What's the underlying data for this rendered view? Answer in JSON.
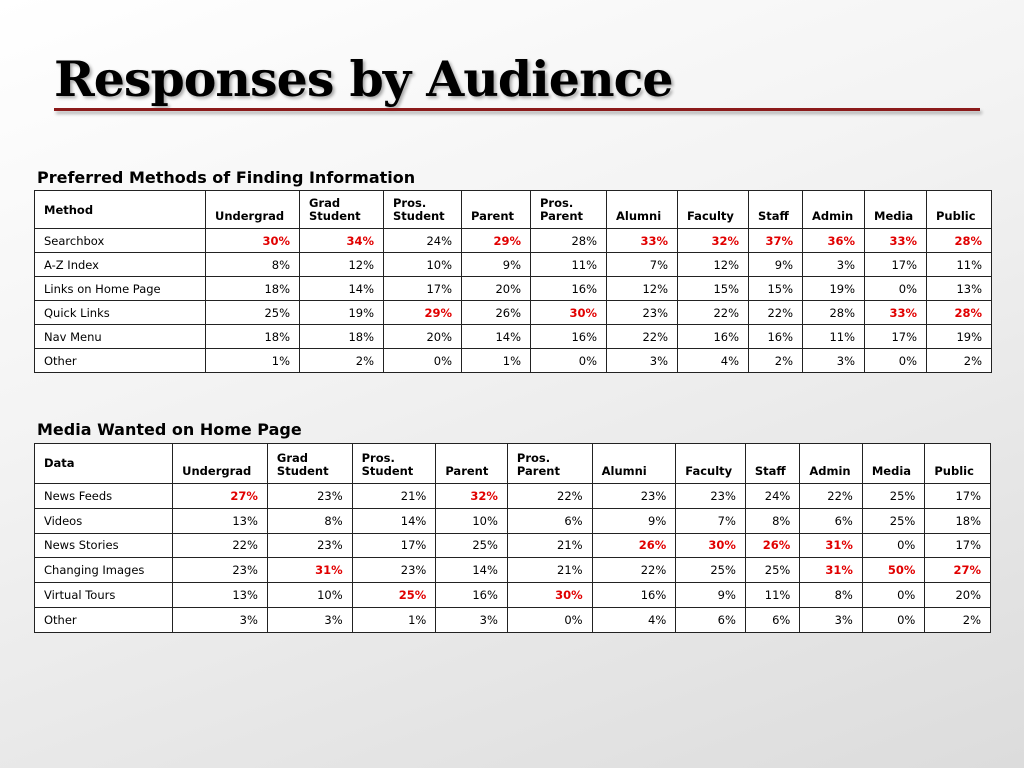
{
  "slide": {
    "title": "Responses by Audience"
  },
  "colors": {
    "highlight": "#e10000",
    "rule": "#8b1a1a"
  },
  "table1": {
    "title": "Preferred Methods of Finding Information",
    "first_header": "Method",
    "columns": [
      "Undergrad",
      "Grad\nStudent",
      "Pros.\nStudent",
      "Parent",
      "Pros.\nParent",
      "Alumni",
      "Faculty",
      "Staff",
      "Admin",
      "Media",
      "Public"
    ],
    "rows": [
      {
        "label": "Searchbox",
        "values": [
          "30%",
          "34%",
          "24%",
          "29%",
          "28%",
          "33%",
          "32%",
          "37%",
          "36%",
          "33%",
          "28%"
        ],
        "highlight": [
          true,
          true,
          false,
          true,
          false,
          true,
          true,
          true,
          true,
          true,
          true
        ]
      },
      {
        "label": "A-Z Index",
        "values": [
          "8%",
          "12%",
          "10%",
          "9%",
          "11%",
          "7%",
          "12%",
          "9%",
          "3%",
          "17%",
          "11%"
        ],
        "highlight": [
          false,
          false,
          false,
          false,
          false,
          false,
          false,
          false,
          false,
          false,
          false
        ]
      },
      {
        "label": "Links on Home Page",
        "values": [
          "18%",
          "14%",
          "17%",
          "20%",
          "16%",
          "12%",
          "15%",
          "15%",
          "19%",
          "0%",
          "13%"
        ],
        "highlight": [
          false,
          false,
          false,
          false,
          false,
          false,
          false,
          false,
          false,
          false,
          false
        ]
      },
      {
        "label": "Quick Links",
        "values": [
          "25%",
          "19%",
          "29%",
          "26%",
          "30%",
          "23%",
          "22%",
          "22%",
          "28%",
          "33%",
          "28%"
        ],
        "highlight": [
          false,
          false,
          true,
          false,
          true,
          false,
          false,
          false,
          false,
          true,
          true
        ]
      },
      {
        "label": "Nav Menu",
        "values": [
          "18%",
          "18%",
          "20%",
          "14%",
          "16%",
          "22%",
          "16%",
          "16%",
          "11%",
          "17%",
          "19%"
        ],
        "highlight": [
          false,
          false,
          false,
          false,
          false,
          false,
          false,
          false,
          false,
          false,
          false
        ]
      },
      {
        "label": "Other",
        "values": [
          "1%",
          "2%",
          "0%",
          "1%",
          "0%",
          "3%",
          "4%",
          "2%",
          "3%",
          "0%",
          "2%"
        ],
        "highlight": [
          false,
          false,
          false,
          false,
          false,
          false,
          false,
          false,
          false,
          false,
          false
        ]
      }
    ]
  },
  "table2": {
    "title": "Media Wanted on Home Page",
    "first_header": "Data",
    "columns": [
      "Undergrad",
      "Grad\nStudent",
      "Pros.\nStudent",
      "Parent",
      "Pros.\nParent",
      "Alumni",
      "Faculty",
      "Staff",
      "Admin",
      "Media",
      "Public"
    ],
    "rows": [
      {
        "label": "News Feeds",
        "values": [
          "27%",
          "23%",
          "21%",
          "32%",
          "22%",
          "23%",
          "23%",
          "24%",
          "22%",
          "25%",
          "17%"
        ],
        "highlight": [
          true,
          false,
          false,
          true,
          false,
          false,
          false,
          false,
          false,
          false,
          false
        ]
      },
      {
        "label": "Videos",
        "values": [
          "13%",
          "8%",
          "14%",
          "10%",
          "6%",
          "9%",
          "7%",
          "8%",
          "6%",
          "25%",
          "18%"
        ],
        "highlight": [
          false,
          false,
          false,
          false,
          false,
          false,
          false,
          false,
          false,
          false,
          false
        ]
      },
      {
        "label": "News Stories",
        "values": [
          "22%",
          "23%",
          "17%",
          "25%",
          "21%",
          "26%",
          "30%",
          "26%",
          "31%",
          "0%",
          "17%"
        ],
        "highlight": [
          false,
          false,
          false,
          false,
          false,
          true,
          true,
          true,
          true,
          false,
          false
        ]
      },
      {
        "label": "Changing Images",
        "values": [
          "23%",
          "31%",
          "23%",
          "14%",
          "21%",
          "22%",
          "25%",
          "25%",
          "31%",
          "50%",
          "27%"
        ],
        "highlight": [
          false,
          true,
          false,
          false,
          false,
          false,
          false,
          false,
          true,
          true,
          true
        ]
      },
      {
        "label": "Virtual Tours",
        "values": [
          "13%",
          "10%",
          "25%",
          "16%",
          "30%",
          "16%",
          "9%",
          "11%",
          "8%",
          "0%",
          "20%"
        ],
        "highlight": [
          false,
          false,
          true,
          false,
          true,
          false,
          false,
          false,
          false,
          false,
          false
        ]
      },
      {
        "label": "Other",
        "values": [
          "3%",
          "3%",
          "1%",
          "3%",
          "0%",
          "4%",
          "6%",
          "6%",
          "3%",
          "0%",
          "2%"
        ],
        "highlight": [
          false,
          false,
          false,
          false,
          false,
          false,
          false,
          false,
          false,
          false,
          false
        ]
      }
    ]
  }
}
